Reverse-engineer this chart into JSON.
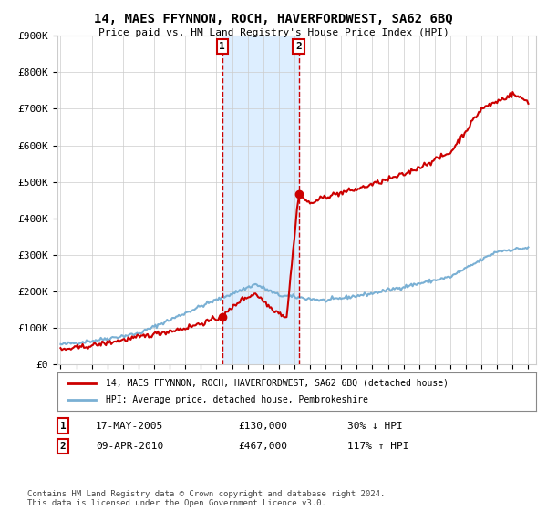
{
  "title": "14, MAES FFYNNON, ROCH, HAVERFORDWEST, SA62 6BQ",
  "subtitle": "Price paid vs. HM Land Registry's House Price Index (HPI)",
  "ylim": [
    0,
    900000
  ],
  "yticks": [
    0,
    100000,
    200000,
    300000,
    400000,
    500000,
    600000,
    700000,
    800000,
    900000
  ],
  "ytick_labels": [
    "£0",
    "£100K",
    "£200K",
    "£300K",
    "£400K",
    "£500K",
    "£600K",
    "£700K",
    "£800K",
    "£900K"
  ],
  "xlim_start": 1994.8,
  "xlim_end": 2025.5,
  "sale1_x": 2005.37,
  "sale1_y": 130000,
  "sale2_x": 2010.27,
  "sale2_y": 467000,
  "sale1_label": "17-MAY-2005",
  "sale1_price": "£130,000",
  "sale1_hpi": "30% ↓ HPI",
  "sale2_label": "09-APR-2010",
  "sale2_price": "£467,000",
  "sale2_hpi": "117% ↑ HPI",
  "property_line_color": "#cc0000",
  "hpi_line_color": "#7ab0d4",
  "shade_color": "#ddeeff",
  "vline_color": "#cc0000",
  "legend_property": "14, MAES FFYNNON, ROCH, HAVERFORDWEST, SA62 6BQ (detached house)",
  "legend_hpi": "HPI: Average price, detached house, Pembrokeshire",
  "footnote": "Contains HM Land Registry data © Crown copyright and database right 2024.\nThis data is licensed under the Open Government Licence v3.0.",
  "background_color": "#ffffff",
  "grid_color": "#cccccc"
}
